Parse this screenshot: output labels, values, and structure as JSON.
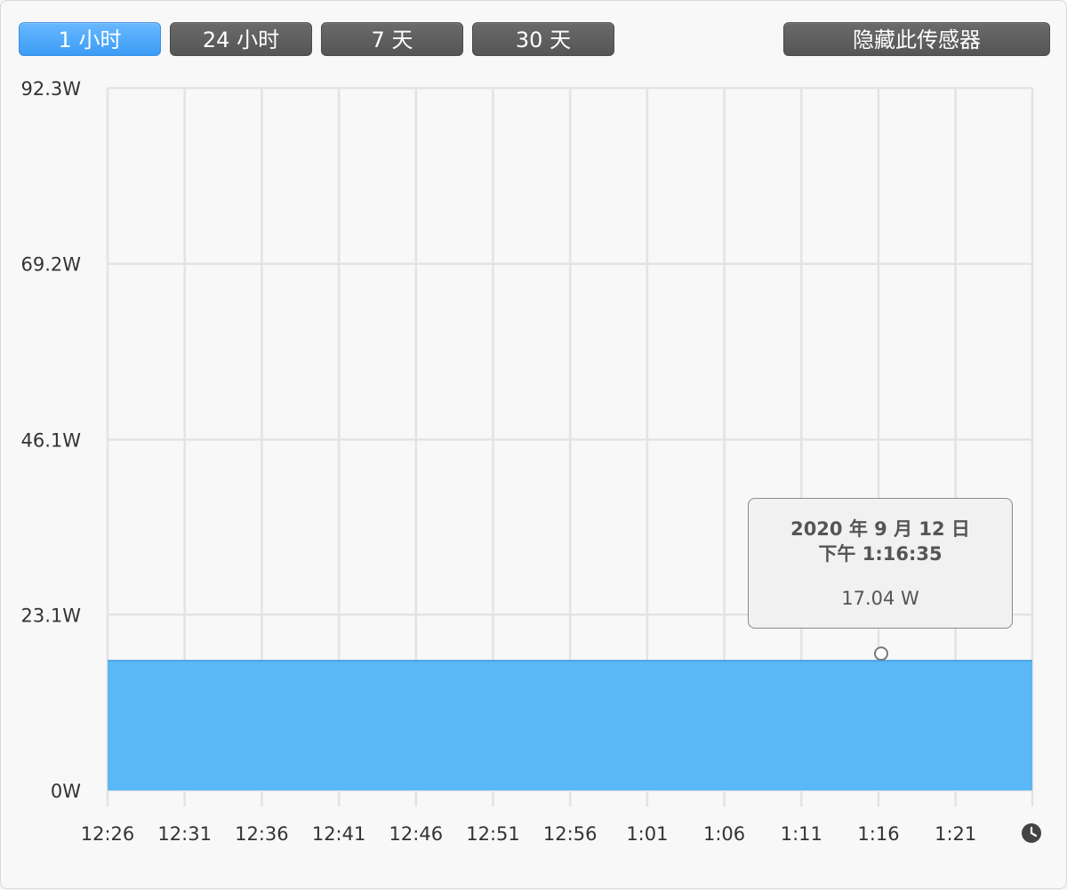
{
  "toolbar": {
    "ranges": [
      {
        "label": "1 小时",
        "active": true
      },
      {
        "label": "24 小时",
        "active": false
      },
      {
        "label": "7 天",
        "active": false
      },
      {
        "label": "30 天",
        "active": false
      }
    ],
    "hide_label": "隐藏此传感器"
  },
  "tooltip": {
    "date": "2020 年 9 月 12 日",
    "time": "下午 1:16:35",
    "value": "17.04 W"
  },
  "colors": {
    "accent": "#5bb8f6",
    "grid": "#e3e3e3",
    "active_button": "#4aa8fa",
    "dark_button": "#5e5e5e"
  },
  "chart_data": {
    "type": "area",
    "title": "",
    "xlabel": "",
    "ylabel": "",
    "x_ticks": [
      "12:26",
      "12:31",
      "12:36",
      "12:41",
      "12:46",
      "12:51",
      "12:56",
      "1:01",
      "1:06",
      "1:11",
      "1:16",
      "1:21"
    ],
    "y_ticks": [
      "92.3W",
      "69.2W",
      "46.1W",
      "23.1W",
      "0W"
    ],
    "ylim": [
      0,
      92.3
    ],
    "xlim_minutes": [
      0,
      59
    ],
    "series": [
      {
        "x": [
          "12:26",
          "1:26"
        ],
        "values": [
          17.04,
          17.04
        ]
      }
    ],
    "highlight": {
      "time": "1:16",
      "value": 17.04
    },
    "grid": true,
    "legend": "none",
    "clock_icon": "clock-icon"
  }
}
